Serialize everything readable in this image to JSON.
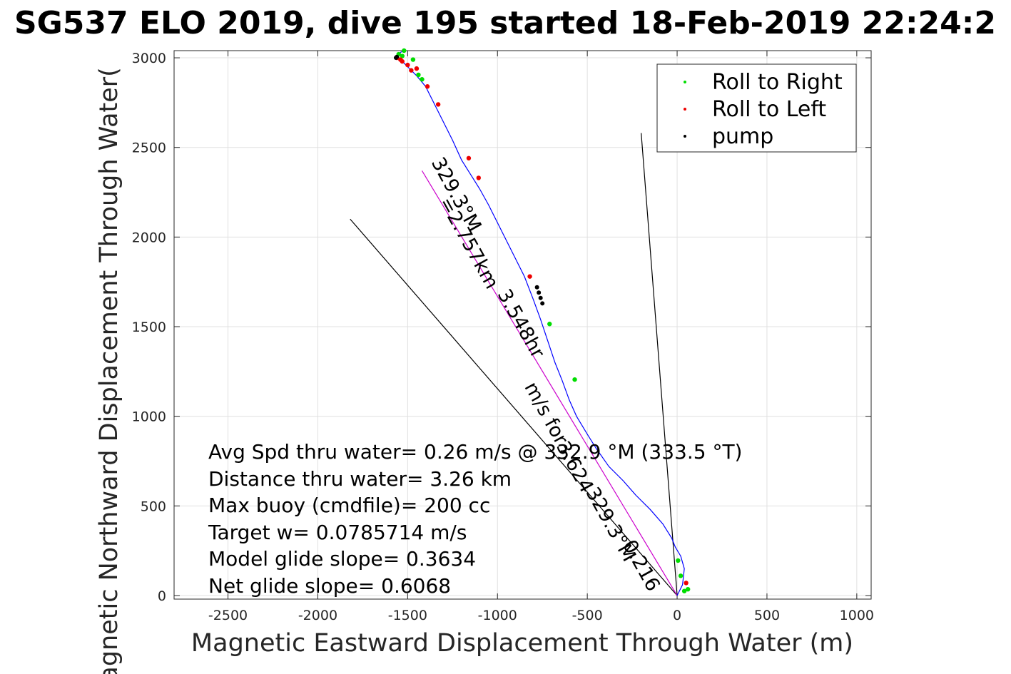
{
  "chart_data": {
    "type": "line",
    "title": "SG537 ELO 2019, dive 195 started 18-Feb-2019 22:24:2",
    "xlabel": "Magnetic Eastward Displacement Through Water (m)",
    "ylabel": "Magnetic Northward Displacement Through Water(",
    "xlim": [
      -2800,
      1080
    ],
    "ylim": [
      -20,
      3040
    ],
    "xticks": [
      -2500,
      -2000,
      -1500,
      -1000,
      -500,
      0,
      500,
      1000
    ],
    "yticks": [
      0,
      500,
      1000,
      1500,
      2000,
      2500,
      3000
    ],
    "grid": true,
    "legend_position": "top-right",
    "legend": [
      {
        "label": "Roll to Right",
        "color": "#00dd00"
      },
      {
        "label": "Roll to Left",
        "color": "#ee0000"
      },
      {
        "label": "pump",
        "color": "#000000"
      }
    ],
    "track": {
      "name": "track",
      "color": "#0000ff",
      "x": [
        0,
        30,
        40,
        20,
        -10,
        -30,
        -80,
        -150,
        -230,
        -300,
        -380,
        -450,
        -500,
        -560,
        -600,
        -640,
        -680,
        -720,
        -760,
        -800,
        -850,
        -900,
        -950,
        -1000,
        -1050,
        -1100,
        -1150,
        -1200,
        -1250,
        -1300,
        -1350,
        -1400,
        -1450,
        -1490,
        -1520,
        -1540,
        -1555,
        -1540,
        -1520
      ],
      "y": [
        0,
        60,
        150,
        220,
        270,
        320,
        400,
        480,
        560,
        640,
        720,
        820,
        900,
        1000,
        1090,
        1200,
        1300,
        1420,
        1540,
        1650,
        1780,
        1880,
        1980,
        2080,
        2180,
        2270,
        2350,
        2430,
        2540,
        2640,
        2740,
        2840,
        2900,
        2940,
        2970,
        2990,
        3010,
        3030,
        3040
      ]
    },
    "roll_right": {
      "color": "#00dd00",
      "points": [
        [
          40,
          25
        ],
        [
          60,
          35
        ],
        [
          20,
          110
        ],
        [
          5,
          195
        ],
        [
          -570,
          1205
        ],
        [
          -710,
          1515
        ],
        [
          -1440,
          2905
        ],
        [
          -1420,
          2880
        ],
        [
          -1470,
          2990
        ],
        [
          -1520,
          3040
        ],
        [
          -1550,
          3020
        ],
        [
          -1530,
          3010
        ]
      ]
    },
    "roll_left": {
      "color": "#ee0000",
      "points": [
        [
          50,
          70
        ],
        [
          -820,
          1780
        ],
        [
          -1160,
          2440
        ],
        [
          -1105,
          2330
        ],
        [
          -1330,
          2740
        ],
        [
          -1390,
          2840
        ],
        [
          -1450,
          2940
        ],
        [
          -1500,
          2960
        ],
        [
          -1530,
          2980
        ],
        [
          -1560,
          3000
        ],
        [
          -1480,
          2930
        ],
        [
          -1540,
          2990
        ]
      ]
    },
    "pump": {
      "color": "#000000",
      "points": [
        [
          -780,
          1720
        ],
        [
          -770,
          1690
        ],
        [
          -760,
          1660
        ],
        [
          -750,
          1630
        ],
        [
          -1560,
          3005
        ],
        [
          -1565,
          3000
        ]
      ]
    },
    "reference_lines": [
      {
        "from": [
          -200,
          2580
        ],
        "to": [
          0,
          0
        ],
        "color": "#000000"
      },
      {
        "from": [
          -1820,
          2100
        ],
        "to": [
          0,
          0
        ],
        "color": "#000000"
      },
      {
        "from": [
          -1420,
          2370
        ],
        "to": [
          0,
          0
        ],
        "color": "#cc00cc"
      }
    ],
    "rotated_labels": [
      {
        "text": "329.3°M",
        "anchor": [
          -1260,
          2220
        ],
        "angle": 61
      },
      {
        "text": "=2.757km",
        "anchor": [
          -1190,
          1950
        ],
        "angle": 61
      },
      {
        "text": "3.548hr",
        "anchor": [
          -900,
          1500
        ],
        "angle": 61
      },
      {
        "text": "m/s for",
        "anchor": [
          -760,
          1000
        ],
        "angle": 61
      },
      {
        "text": "3.624",
        "anchor": [
          -600,
          700
        ],
        "angle": 61
      },
      {
        "text": "329.3°M",
        "anchor": [
          -400,
          380
        ],
        "angle": 61
      },
      {
        "text": "0.216",
        "anchor": [
          -230,
          150
        ],
        "angle": 61
      }
    ],
    "annotations": [
      "Avg Spd thru water=  0.26 m/s @ 332.9 °M (333.5 °T)",
      "Distance thru water=  3.26 km",
      "Max buoy (cmdfile)= 200 cc",
      "Target w= 0.0785714 m/s",
      "Model glide slope= 0.3634",
      "Net glide slope= 0.6068"
    ]
  }
}
